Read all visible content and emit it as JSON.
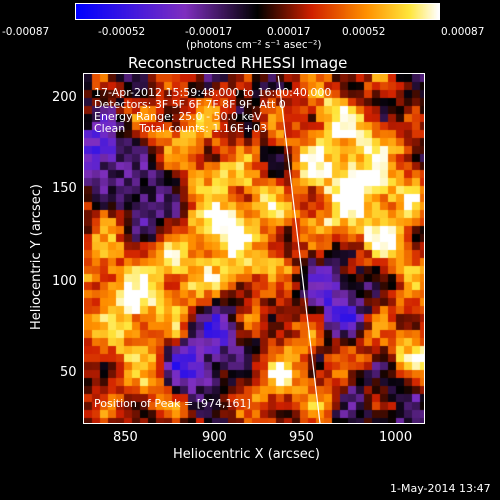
{
  "colorbar": {
    "ticks": [
      "-0.00087",
      "-0.00052",
      "-0.00017",
      "0.00017",
      "0.00052",
      "0.00087"
    ],
    "unit_label": "(photons cm⁻² s⁻¹ asec⁻²)",
    "colors": {
      "low": "#0000ff",
      "mid_low": "#7f2fbf",
      "zero": "#000000",
      "mid_high": "#d02000",
      "high_orange": "#ff9000",
      "high": "#ffffff"
    }
  },
  "plot": {
    "title": "Reconstructed RHESSI Image",
    "xlabel": "Heliocentric X (arcsec)",
    "ylabel": "Heliocentric Y (arcsec)",
    "x_ticks": [
      "850",
      "900",
      "950",
      "1000"
    ],
    "y_ticks": [
      "200",
      "150",
      "100",
      "50"
    ],
    "x_range": [
      823,
      1015
    ],
    "y_range": [
      15,
      212
    ],
    "info_lines": [
      "17-Apr-2012 15:59:48.000 to 16:00:40.000",
      "Detectors: 3F 5F 6F 7F 8F 9F, Att 0",
      "Energy Range: 25.0 - 50.0 keV",
      "Clean    Total counts: 1.16E+03"
    ],
    "peak_text": "Position of Peak = [974,161]",
    "peak": [
      974,
      161
    ],
    "limb_color": "#ffffff"
  },
  "footer": {
    "date": "1-May-2014 13:47"
  }
}
